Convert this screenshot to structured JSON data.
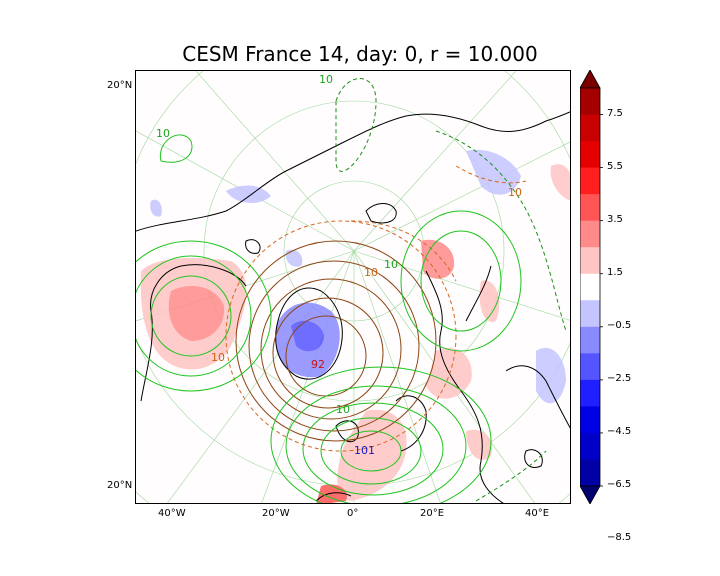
{
  "title": "CESM France 14, day: 0, r = 10.000",
  "lat_labels": [
    "20°N",
    "20°N"
  ],
  "lon_labels": [
    "40°W",
    "20°W",
    "0°",
    "20°E",
    "40°E"
  ],
  "colorbar": {
    "tick_labels": [
      "7.5",
      "5.5",
      "3.5",
      "1.5",
      "−0.5",
      "−2.5",
      "−4.5",
      "−6.5",
      "−8.5"
    ],
    "colors": [
      "#7a0000",
      "#a40000",
      "#c80000",
      "#e50000",
      "#ff1f1f",
      "#ff5555",
      "#ff8a8a",
      "#ffc4c4",
      "#ffffff",
      "#c4c4ff",
      "#8a8aff",
      "#5555ff",
      "#1f1fff",
      "#0000e5",
      "#0000c8",
      "#0000a4",
      "#00006e"
    ]
  },
  "contour_labels": [
    {
      "text": "10",
      "color": "#1fa31f"
    },
    {
      "text": "10",
      "color": "#1fa31f"
    },
    {
      "text": "10",
      "color": "#1fa31f"
    },
    {
      "text": "10",
      "color": "#1fa31f"
    },
    {
      "text": "10",
      "color": "#c86414"
    },
    {
      "text": "10",
      "color": "#c86414"
    },
    {
      "text": "10",
      "color": "#c86414"
    },
    {
      "text": "92",
      "color": "#c81414"
    },
    {
      "text": "101",
      "color": "#1414c8"
    }
  ]
}
